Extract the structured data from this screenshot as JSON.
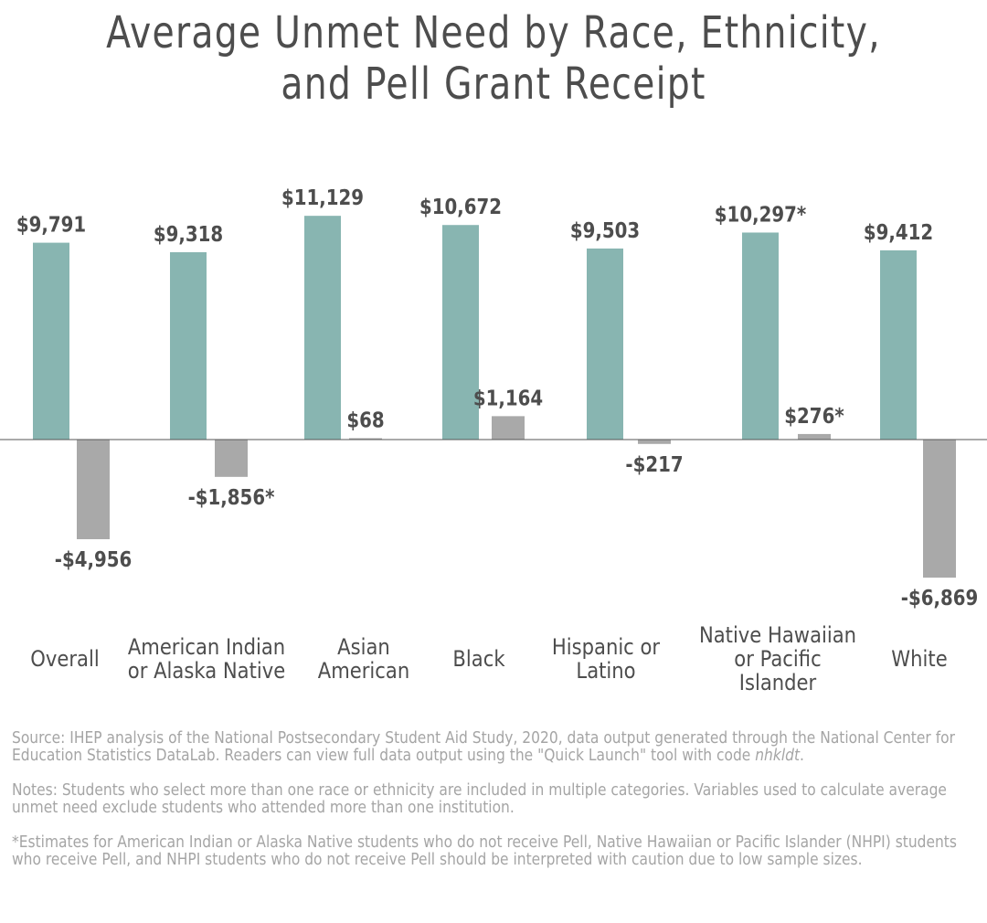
{
  "title_lines": [
    "Average Unmet Need by Race, Ethnicity,",
    "and Pell Grant Receipt"
  ],
  "colors": {
    "pell": "#88b5b1",
    "no_pell": "#a9a9a9",
    "text": "#4d4d4d",
    "baseline": "#555555",
    "notes": "#a5a5a5"
  },
  "chart_data": {
    "type": "bar",
    "categories": [
      [
        "Overall"
      ],
      [
        "American Indian",
        "or Alaska Native"
      ],
      [
        "Asian",
        "American"
      ],
      [
        "Black"
      ],
      [
        "Hispanic or",
        "Latino"
      ],
      [
        "Native Hawaiian",
        "or Pacific",
        "Islander"
      ],
      [
        "White"
      ]
    ],
    "series": [
      {
        "values": [
          9791,
          9318,
          11129,
          10672,
          9503,
          10297,
          9412
        ],
        "labels": [
          "$9,791",
          "$9,318",
          "$11,129",
          "$10,672",
          "$9,503",
          "$10,297*",
          "$9,412"
        ],
        "color": "#88b5b1"
      },
      {
        "values": [
          -4956,
          -1856,
          68,
          1164,
          -217,
          276,
          -6869
        ],
        "labels": [
          "-$4,956",
          "-$1,856*",
          "$68",
          "$1,164",
          "-$217",
          "$276*",
          "-$6,869"
        ],
        "color": "#a9a9a9"
      }
    ],
    "legend": "none",
    "grid": false
  },
  "notes": {
    "source_prefix": "Source: IHEP analysis of the National Postsecondary Student Aid Study, 2020, data output generated through the National Center for Education Statistics DataLab. Readers can view full data output using the \"Quick Launch\" tool with code ",
    "source_code": "nhkldt",
    "source_suffix": ".",
    "notes_text": "Notes: Students who select more than one race or ethnicity are included in multiple categories. Variables used to calculate average unmet need exclude students who attended more than one institution.",
    "caveat": "*Estimates for American Indian or Alaska Native students who do not receive Pell, Native Hawaiian or Pacific Islander (NHPI) students who receive Pell, and NHPI students who do not receive Pell should be interpreted with caution due to low sample sizes."
  }
}
